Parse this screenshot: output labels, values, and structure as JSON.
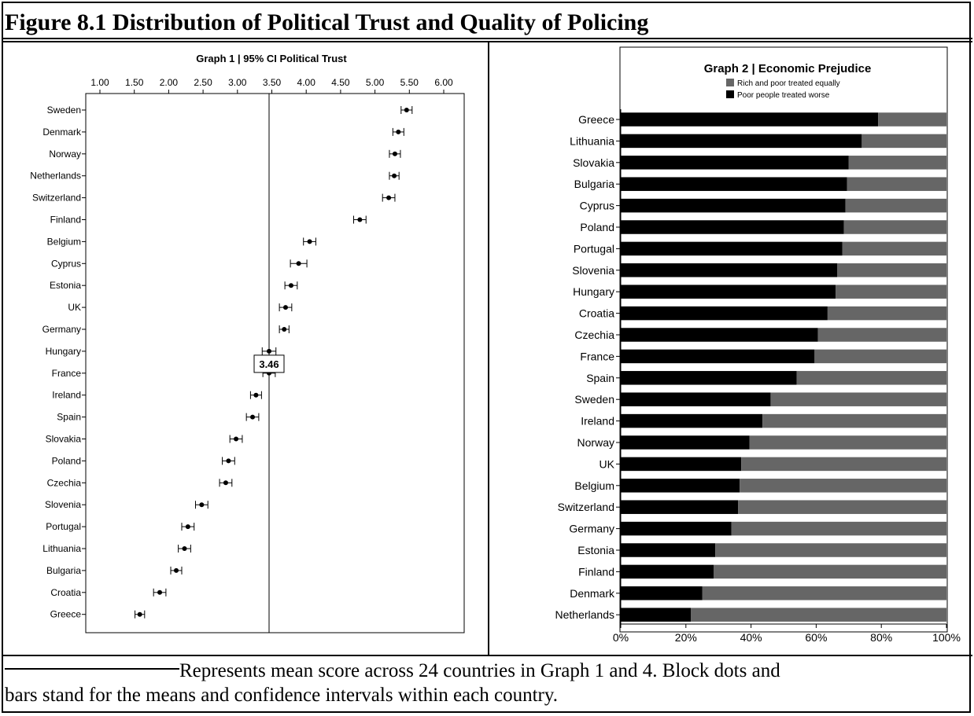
{
  "figure": {
    "title": "Figure 8.1 Distribution of Political Trust and Quality of Policing",
    "footnote_part1": "Represents mean score across 24 countries in Graph 1 and 4. Block dots and",
    "footnote_part2": "bars stand for the means and confidence intervals within each country."
  },
  "chart_data": [
    {
      "type": "scatter",
      "title": "Graph 1 | 95% CI Political Trust",
      "xlabel": "",
      "ylabel": "",
      "xlim": [
        1.0,
        6.0
      ],
      "x_ticks": [
        "1.00",
        "1.50",
        "2.00",
        "2.50",
        "3.00",
        "3.50",
        "4.00",
        "4.50",
        "5.00",
        "5.50",
        "6.00"
      ],
      "reference_line": {
        "value": 3.46,
        "label": "3.46"
      },
      "grid": false,
      "categories": [
        "Sweden",
        "Denmark",
        "Norway",
        "Netherlands",
        "Switzerland",
        "Finland",
        "Belgium",
        "Cyprus",
        "Estonia",
        "UK",
        "Germany",
        "Hungary",
        "France",
        "Ireland",
        "Spain",
        "Slovakia",
        "Poland",
        "Czechia",
        "Slovenia",
        "Portugal",
        "Lithuania",
        "Bulgaria",
        "Croatia",
        "Greece"
      ],
      "means": [
        5.46,
        5.34,
        5.29,
        5.28,
        5.2,
        4.78,
        4.05,
        3.89,
        3.78,
        3.7,
        3.68,
        3.46,
        3.46,
        3.27,
        3.22,
        2.98,
        2.87,
        2.83,
        2.48,
        2.28,
        2.23,
        2.11,
        1.87,
        1.58
      ],
      "ci_low": [
        5.38,
        5.26,
        5.21,
        5.21,
        5.11,
        4.69,
        3.96,
        3.77,
        3.69,
        3.61,
        3.61,
        3.36,
        3.37,
        3.19,
        3.13,
        2.89,
        2.78,
        2.74,
        2.39,
        2.19,
        2.14,
        2.03,
        1.78,
        1.51
      ],
      "ci_high": [
        5.54,
        5.42,
        5.37,
        5.35,
        5.29,
        4.87,
        4.14,
        4.01,
        3.87,
        3.79,
        3.75,
        3.56,
        3.55,
        3.35,
        3.31,
        3.07,
        2.96,
        2.92,
        2.57,
        2.37,
        2.32,
        2.19,
        1.96,
        1.65
      ]
    },
    {
      "type": "bar",
      "orientation": "horizontal",
      "stacked": true,
      "title": "Graph 2 | Economic Prejudice",
      "xlim": [
        0,
        100
      ],
      "x_ticks": [
        "0%",
        "20%",
        "40%",
        "60%",
        "80%",
        "100%"
      ],
      "legend_position": "top",
      "categories": [
        "Greece",
        "Lithuania",
        "Slovakia",
        "Bulgaria",
        "Cyprus",
        "Poland",
        "Portugal",
        "Slovenia",
        "Hungary",
        "Croatia",
        "Czechia",
        "France",
        "Spain",
        "Sweden",
        "Ireland",
        "Norway",
        "UK",
        "Belgium",
        "Switzerland",
        "Germany",
        "Estonia",
        "Finland",
        "Denmark",
        "Netherlands"
      ],
      "series": [
        {
          "name": "Poor people treated worse",
          "color": "#000000",
          "values": [
            79,
            74,
            70,
            69.5,
            69,
            68.5,
            68,
            66.5,
            66,
            63.5,
            60.5,
            59.5,
            54,
            46,
            43.5,
            39.5,
            37,
            36.5,
            36,
            34,
            29,
            28.5,
            25,
            21.5
          ]
        },
        {
          "name": "Rich and poor treated equally",
          "color": "#666666",
          "values": [
            21,
            26,
            30,
            30.5,
            31,
            31.5,
            32,
            33.5,
            34,
            36.5,
            39.5,
            40.5,
            46,
            54,
            56.5,
            60.5,
            63,
            63.5,
            64,
            66,
            71,
            71.5,
            75,
            78.5
          ]
        }
      ]
    }
  ]
}
